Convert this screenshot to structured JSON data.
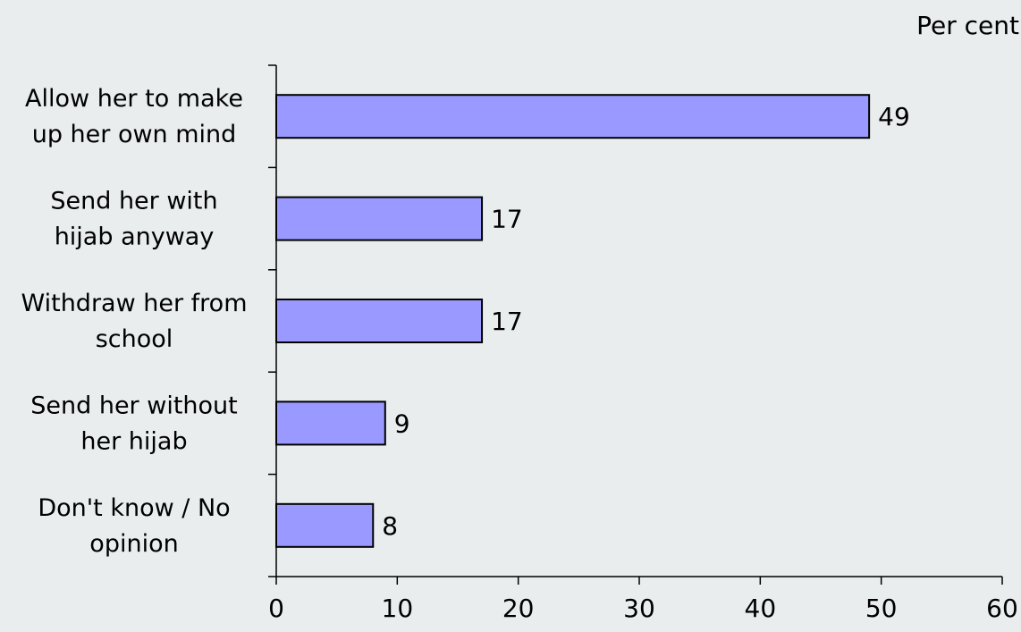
{
  "chart_data": {
    "type": "bar",
    "orientation": "horizontal",
    "unit_label": "Per cent",
    "categories": [
      [
        "Allow her to make",
        "up her own mind"
      ],
      [
        "Send her with",
        "hijab anyway"
      ],
      [
        "Withdraw her from",
        "school"
      ],
      [
        "Send her without",
        "her hijab"
      ],
      [
        "Don't know / No",
        "opinion"
      ]
    ],
    "values": [
      49,
      17,
      17,
      9,
      8
    ],
    "xlim": [
      0,
      60
    ],
    "x_ticks": [
      0,
      10,
      20,
      30,
      40,
      50,
      60
    ],
    "grid": false,
    "legend": "none",
    "colors": {
      "bar_fill": "#9999ff",
      "bar_stroke": "#000000",
      "background": "#e9edee",
      "axis": "#000000"
    }
  }
}
